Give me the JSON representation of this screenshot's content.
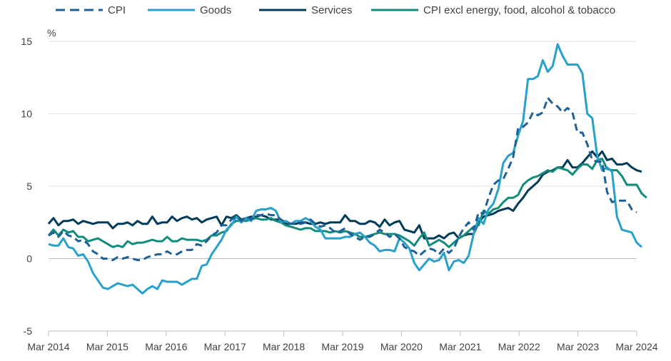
{
  "chart_data": {
    "type": "line",
    "title": "",
    "xlabel": "",
    "ylabel": "%",
    "ylim": [
      -5,
      15
    ],
    "yticks": [
      "15",
      "10",
      "5",
      "0",
      "-5"
    ],
    "xtick_labels": [
      "Mar 2014",
      "Mar 2015",
      "Mar 2016",
      "Mar 2017",
      "Mar 2018",
      "Mar 2019",
      "Mar 2020",
      "Mar 2021",
      "Mar 2022",
      "Mar 2023",
      "Mar 2024"
    ],
    "x_start": "2014-03",
    "x_end": "2024-03",
    "grid": "horizontal",
    "legend": "top",
    "series": [
      {
        "name": "CPI",
        "color": "#206095",
        "dash": true,
        "values": [
          1.6,
          1.8,
          1.5,
          1.9,
          1.6,
          1.5,
          1.2,
          1.3,
          1.0,
          0.5,
          0.3,
          0.0,
          0.0,
          -0.1,
          0.1,
          0.0,
          0.1,
          0.0,
          -0.1,
          -0.1,
          0.1,
          0.2,
          0.3,
          0.3,
          0.5,
          0.3,
          0.3,
          0.5,
          0.6,
          0.6,
          1.0,
          0.9,
          1.2,
          1.6,
          1.8,
          2.3,
          2.3,
          2.7,
          2.9,
          2.6,
          2.9,
          2.7,
          3.0,
          3.0,
          3.1,
          3.0,
          3.0,
          2.7,
          2.5,
          2.4,
          2.4,
          2.4,
          2.5,
          2.7,
          2.4,
          2.2,
          2.3,
          2.1,
          1.8,
          1.9,
          2.1,
          1.7,
          1.5,
          1.3,
          1.5,
          1.5,
          1.7,
          2.0,
          1.8,
          1.5,
          1.7,
          1.4,
          0.8,
          0.6,
          0.5,
          0.2,
          0.5,
          0.7,
          0.6,
          0.3,
          0.7,
          0.4,
          0.7,
          1.5,
          2.1,
          2.5,
          2.0,
          3.2,
          3.1,
          4.2,
          5.1,
          5.4,
          5.5,
          6.2,
          7.0,
          9.0,
          9.1,
          9.4,
          10.1,
          9.9,
          10.1,
          11.1,
          10.7,
          10.5,
          10.1,
          10.4,
          10.1,
          8.7,
          8.7,
          7.9,
          6.8,
          6.7,
          6.7,
          4.6,
          3.9,
          4.0,
          4.0,
          4.0,
          3.4,
          3.2
        ]
      },
      {
        "name": "Goods",
        "color": "#27a0cc",
        "dash": false,
        "values": [
          1.0,
          0.9,
          0.9,
          1.4,
          0.8,
          0.7,
          0.2,
          0.3,
          -0.2,
          -1.0,
          -1.5,
          -2.0,
          -2.1,
          -1.9,
          -1.7,
          -1.8,
          -1.9,
          -1.8,
          -2.1,
          -2.4,
          -2.1,
          -1.9,
          -2.1,
          -1.5,
          -1.6,
          -1.6,
          -1.6,
          -1.8,
          -1.6,
          -1.4,
          -1.4,
          -0.5,
          -0.4,
          0.3,
          0.8,
          1.3,
          2.0,
          2.3,
          2.9,
          2.5,
          2.8,
          2.6,
          3.3,
          3.4,
          3.4,
          3.5,
          3.3,
          2.5,
          2.6,
          2.4,
          2.6,
          2.6,
          2.8,
          2.6,
          2.2,
          2.0,
          1.4,
          1.4,
          1.4,
          1.4,
          1.5,
          1.5,
          1.7,
          1.8,
          1.5,
          1.1,
          0.9,
          0.5,
          0.6,
          0.6,
          0.5,
          1.4,
          1.1,
          0.7,
          -0.3,
          -0.8,
          -0.4,
          0.0,
          -0.2,
          -0.1,
          0.4,
          -0.8,
          -0.2,
          -0.1,
          -0.3,
          0.2,
          1.7,
          2.8,
          2.4,
          3.4,
          3.8,
          4.8,
          6.6,
          7.1,
          7.3,
          8.5,
          9.5,
          12.4,
          12.4,
          12.6,
          13.7,
          12.9,
          13.3,
          14.8,
          14.0,
          13.4,
          13.4,
          13.4,
          12.8,
          10.0,
          9.7,
          7.1,
          6.1,
          6.3,
          6.0,
          2.9,
          2.0,
          1.9,
          1.8,
          1.1,
          0.8
        ]
      },
      {
        "name": "Services",
        "color": "#003c57",
        "dash": false,
        "values": [
          2.4,
          2.8,
          2.3,
          2.6,
          2.6,
          2.7,
          2.4,
          2.6,
          2.5,
          2.4,
          2.5,
          2.5,
          2.5,
          2.1,
          2.4,
          2.4,
          2.5,
          2.3,
          2.6,
          2.4,
          2.4,
          2.9,
          2.4,
          2.5,
          2.5,
          2.9,
          2.6,
          2.8,
          2.9,
          2.7,
          2.8,
          2.5,
          2.7,
          2.8,
          2.9,
          2.3,
          2.9,
          2.8,
          3.0,
          2.7,
          2.8,
          2.9,
          2.9,
          3.0,
          2.9,
          2.7,
          2.7,
          2.7,
          2.4,
          2.4,
          2.4,
          2.5,
          2.5,
          2.4,
          2.4,
          2.5,
          2.4,
          2.5,
          2.5,
          2.5,
          3.0,
          2.6,
          2.6,
          2.4,
          2.4,
          2.6,
          2.5,
          2.2,
          2.7,
          2.3,
          2.5,
          2.6,
          2.0,
          1.9,
          1.8,
          2.3,
          1.4,
          1.4,
          1.4,
          1.6,
          1.4,
          1.7,
          1.8,
          1.4,
          1.6,
          1.7,
          1.7,
          2.5,
          2.9,
          3.0,
          3.1,
          3.3,
          3.4,
          3.5,
          3.3,
          3.8,
          4.2,
          4.7,
          5.0,
          5.3,
          5.8,
          6.0,
          6.1,
          6.3,
          6.3,
          6.8,
          6.3,
          6.3,
          6.6,
          7.0,
          7.4,
          7.0,
          7.4,
          6.8,
          6.9,
          6.5,
          6.5,
          6.6,
          6.3,
          6.1,
          6.0
        ]
      },
      {
        "name": "CPI excl energy, food, alcohol & tobacco",
        "color": "#118c7b",
        "dash": false,
        "values": [
          1.6,
          2.0,
          1.6,
          2.0,
          1.8,
          1.9,
          1.5,
          1.5,
          1.2,
          1.3,
          1.4,
          1.2,
          1.0,
          0.8,
          0.9,
          0.8,
          1.2,
          1.0,
          1.1,
          1.1,
          1.2,
          1.3,
          1.2,
          1.2,
          1.5,
          1.2,
          1.2,
          1.4,
          1.3,
          1.3,
          1.3,
          1.2,
          1.3,
          1.6,
          1.6,
          1.8,
          1.9,
          2.4,
          2.6,
          2.6,
          2.6,
          2.7,
          2.8,
          2.7,
          2.7,
          2.8,
          2.6,
          2.5,
          2.3,
          2.2,
          2.1,
          2.0,
          2.1,
          2.1,
          1.9,
          1.9,
          1.9,
          1.8,
          1.9,
          1.8,
          1.9,
          1.8,
          1.7,
          1.5,
          1.5,
          1.6,
          1.7,
          1.8,
          1.7,
          1.7,
          1.7,
          1.6,
          1.4,
          1.2,
          0.9,
          1.4,
          1.8,
          0.9,
          1.1,
          1.3,
          1.1,
          0.8,
          1.1,
          1.4,
          1.6,
          1.9,
          2.2,
          2.3,
          3.3,
          3.1,
          3.4,
          3.5,
          3.9,
          4.2,
          4.2,
          4.4,
          5.1,
          5.4,
          5.6,
          5.7,
          5.9,
          6.1,
          6.0,
          6.3,
          6.2,
          6.1,
          5.8,
          6.2,
          6.5,
          6.5,
          6.2,
          6.8,
          6.9,
          6.2,
          6.1,
          6.1,
          5.7,
          5.1,
          5.1,
          5.1,
          4.5,
          4.2
        ]
      }
    ]
  }
}
